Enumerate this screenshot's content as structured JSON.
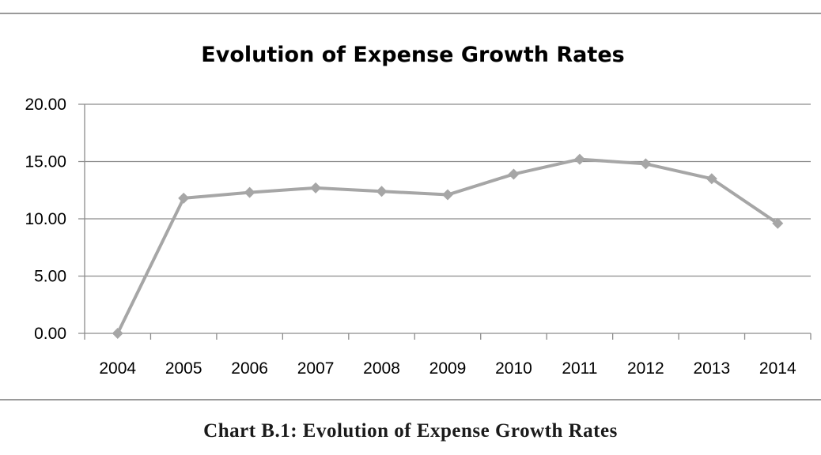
{
  "caption": "Chart B.1: Evolution of Expense Growth Rates",
  "chart_data": {
    "type": "line",
    "title": "Evolution of Expense Growth Rates",
    "xlabel": "",
    "ylabel": "",
    "categories": [
      "2004",
      "2005",
      "2006",
      "2007",
      "2008",
      "2009",
      "2010",
      "2011",
      "2012",
      "2013",
      "2014"
    ],
    "series": [
      {
        "values": [
          0.0,
          11.8,
          12.3,
          12.7,
          12.4,
          12.1,
          13.9,
          15.2,
          14.8,
          13.5,
          9.6
        ],
        "color": "#a6a6a6"
      }
    ],
    "yticks": [
      "0.00",
      "5.00",
      "10.00",
      "15.00",
      "20.00"
    ],
    "ylim": [
      0,
      20
    ],
    "grid": true,
    "legend": "none"
  }
}
